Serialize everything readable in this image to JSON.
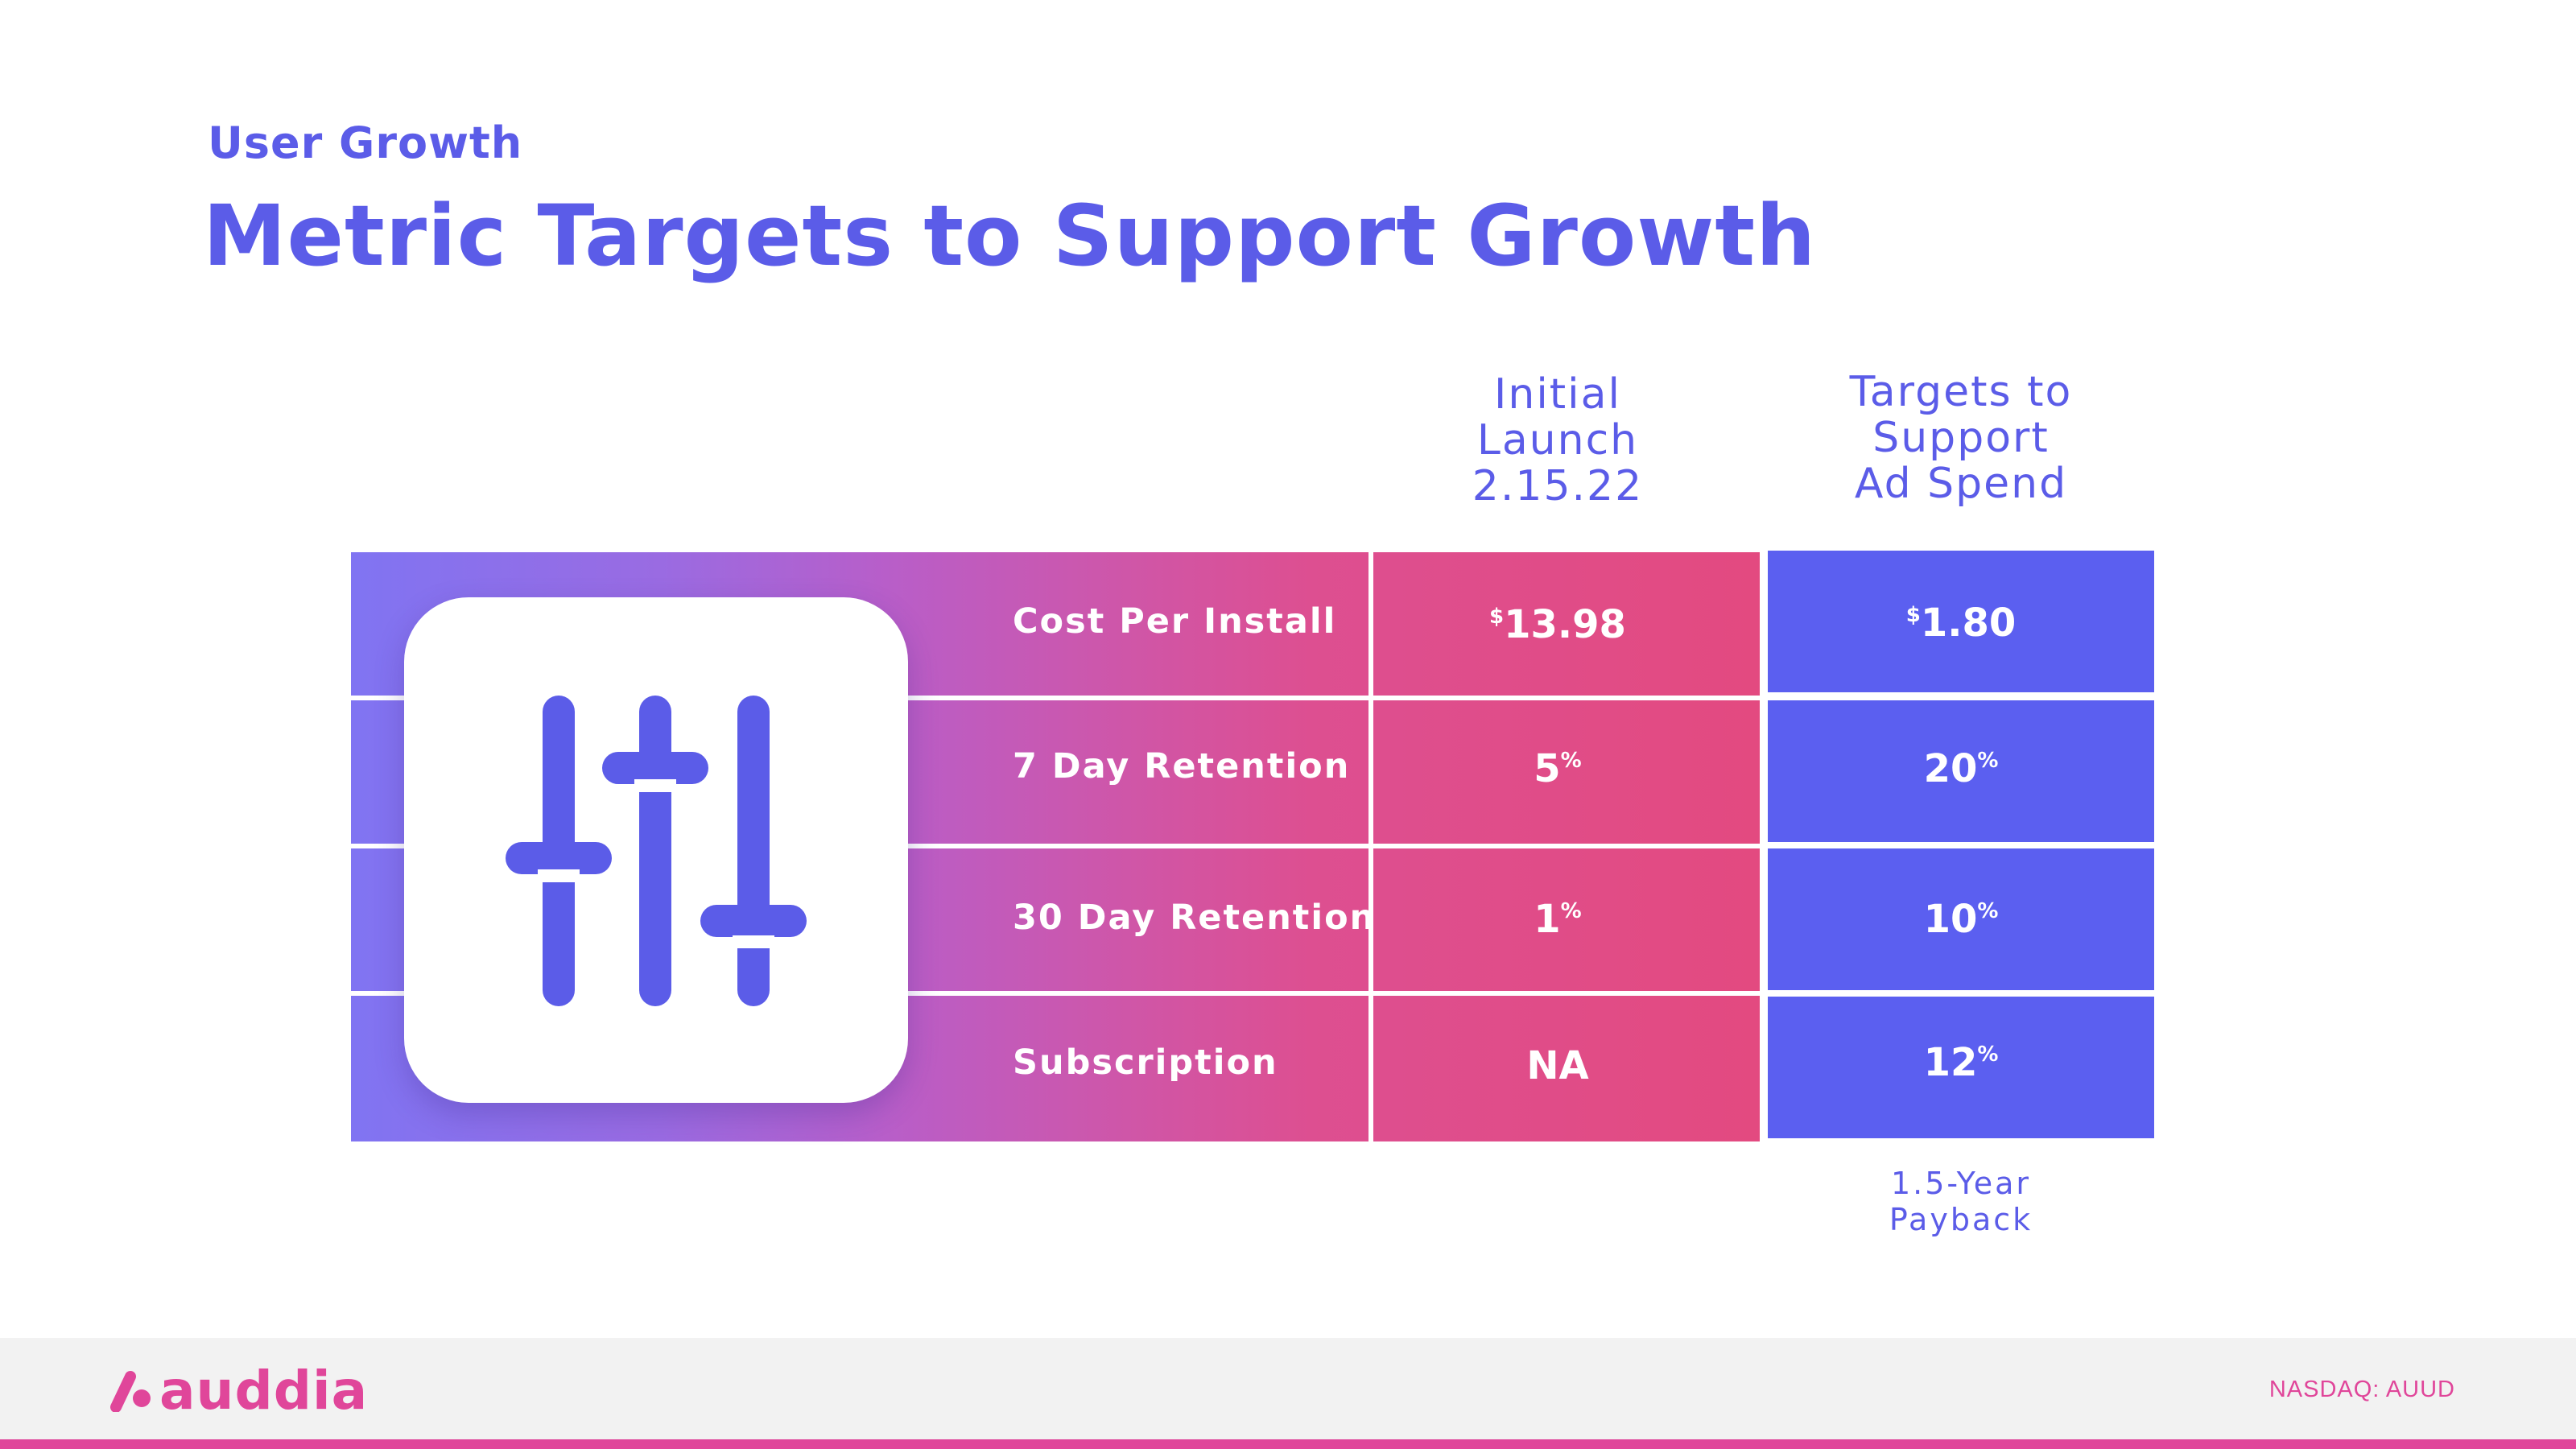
{
  "header": {
    "eyebrow": "User Growth",
    "title": "Metric Targets to Support Growth"
  },
  "columns": {
    "initial": [
      "Initial",
      "Launch",
      "2.15.22"
    ],
    "target": [
      "Targets to",
      "Support",
      "Ad Spend"
    ]
  },
  "rows": [
    {
      "label": "Cost Per Install",
      "initial": {
        "prefix": "$",
        "value": "13.98",
        "suffix": ""
      },
      "target": {
        "prefix": "$",
        "value": "1.80",
        "suffix": ""
      }
    },
    {
      "label": "7 Day Retention",
      "initial": {
        "prefix": "",
        "value": "5",
        "suffix": "%"
      },
      "target": {
        "prefix": "",
        "value": "20",
        "suffix": "%"
      }
    },
    {
      "label": "30 Day Retention",
      "initial": {
        "prefix": "",
        "value": "1",
        "suffix": "%"
      },
      "target": {
        "prefix": "",
        "value": "10",
        "suffix": "%"
      }
    },
    {
      "label": "Subscription",
      "initial": {
        "prefix": "",
        "value": "NA",
        "suffix": ""
      },
      "target": {
        "prefix": "",
        "value": "12",
        "suffix": "%"
      }
    }
  ],
  "note": [
    "1.5-Year",
    "Payback"
  ],
  "icon": "sliders-icon",
  "footer": {
    "logo_text": "auddia",
    "logo_icon": "auddia-logo-icon",
    "ticker": "NASDAQ: AUUD"
  },
  "colors": {
    "brand_purple": "#5b5ce8",
    "target_blue": "#5b5ff0",
    "brand_pink": "#e0469a"
  }
}
